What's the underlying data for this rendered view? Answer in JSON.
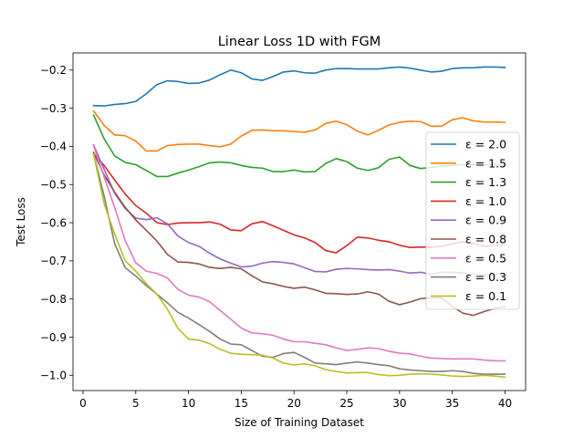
{
  "chart_data": {
    "type": "line",
    "title": "Linear Loss 1D with FGM",
    "xlabel": "Size of Training Dataset",
    "ylabel": "Test Loss",
    "xlim": [
      -0.95,
      41.95
    ],
    "ylim": [
      -1.04,
      -0.155
    ],
    "xticks": [
      0,
      5,
      10,
      15,
      20,
      25,
      30,
      35,
      40
    ],
    "yticks": [
      -1.0,
      -0.9,
      -0.8,
      -0.7,
      -0.6,
      -0.5,
      -0.4,
      -0.3,
      -0.2
    ],
    "xtick_labels": [
      "0",
      "5",
      "10",
      "15",
      "20",
      "25",
      "30",
      "35",
      "40"
    ],
    "ytick_labels": [
      "−1.0",
      "−0.9",
      "−0.8",
      "−0.7",
      "−0.6",
      "−0.5",
      "−0.4",
      "−0.3",
      "−0.2"
    ],
    "grid": false,
    "legend_position": "center-right",
    "x": [
      1,
      2,
      3,
      4,
      5,
      6,
      7,
      8,
      9,
      10,
      11,
      12,
      13,
      14,
      15,
      16,
      17,
      18,
      19,
      20,
      21,
      22,
      23,
      24,
      25,
      26,
      27,
      28,
      29,
      30,
      31,
      32,
      33,
      34,
      35,
      36,
      37,
      38,
      39,
      40
    ],
    "series": [
      {
        "name": "ε = 2.0",
        "color": "#1f77b4",
        "values": [
          -0.293,
          -0.294,
          -0.29,
          -0.288,
          -0.282,
          -0.262,
          -0.238,
          -0.228,
          -0.23,
          -0.235,
          -0.234,
          -0.226,
          -0.212,
          -0.2,
          -0.207,
          -0.223,
          -0.227,
          -0.217,
          -0.205,
          -0.202,
          -0.207,
          -0.208,
          -0.2,
          -0.196,
          -0.196,
          -0.197,
          -0.197,
          -0.197,
          -0.194,
          -0.192,
          -0.195,
          -0.2,
          -0.205,
          -0.203,
          -0.196,
          -0.194,
          -0.194,
          -0.192,
          -0.192,
          -0.193
        ]
      },
      {
        "name": "ε = 1.5",
        "color": "#ff7f0e",
        "values": [
          -0.307,
          -0.345,
          -0.37,
          -0.372,
          -0.386,
          -0.412,
          -0.412,
          -0.398,
          -0.395,
          -0.394,
          -0.394,
          -0.398,
          -0.401,
          -0.394,
          -0.373,
          -0.358,
          -0.357,
          -0.359,
          -0.359,
          -0.361,
          -0.363,
          -0.357,
          -0.34,
          -0.334,
          -0.343,
          -0.36,
          -0.37,
          -0.358,
          -0.344,
          -0.337,
          -0.334,
          -0.335,
          -0.347,
          -0.347,
          -0.33,
          -0.325,
          -0.333,
          -0.336,
          -0.336,
          -0.337
        ]
      },
      {
        "name": "ε = 1.3",
        "color": "#2ca02c",
        "values": [
          -0.318,
          -0.38,
          -0.425,
          -0.442,
          -0.448,
          -0.463,
          -0.479,
          -0.479,
          -0.47,
          -0.462,
          -0.453,
          -0.443,
          -0.441,
          -0.443,
          -0.45,
          -0.455,
          -0.457,
          -0.466,
          -0.466,
          -0.462,
          -0.467,
          -0.466,
          -0.445,
          -0.432,
          -0.44,
          -0.457,
          -0.463,
          -0.456,
          -0.434,
          -0.428,
          -0.45,
          -0.458,
          -0.455,
          -0.452,
          -0.45,
          -0.448,
          -0.447,
          -0.448,
          -0.448,
          -0.449
        ]
      },
      {
        "name": "ε = 1.0",
        "color": "#d62728",
        "values": [
          -0.42,
          -0.45,
          -0.488,
          -0.525,
          -0.555,
          -0.575,
          -0.6,
          -0.605,
          -0.601,
          -0.6,
          -0.6,
          -0.598,
          -0.604,
          -0.619,
          -0.621,
          -0.603,
          -0.597,
          -0.608,
          -0.62,
          -0.632,
          -0.64,
          -0.652,
          -0.673,
          -0.679,
          -0.66,
          -0.638,
          -0.64,
          -0.646,
          -0.65,
          -0.659,
          -0.665,
          -0.664,
          -0.664,
          -0.662,
          -0.655,
          -0.65,
          -0.655,
          -0.662,
          -0.66,
          -0.658
        ]
      },
      {
        "name": "ε = 0.9",
        "color": "#9467bd",
        "values": [
          -0.396,
          -0.46,
          -0.523,
          -0.563,
          -0.588,
          -0.592,
          -0.587,
          -0.603,
          -0.635,
          -0.652,
          -0.662,
          -0.68,
          -0.695,
          -0.706,
          -0.716,
          -0.714,
          -0.706,
          -0.702,
          -0.704,
          -0.708,
          -0.718,
          -0.728,
          -0.729,
          -0.722,
          -0.72,
          -0.721,
          -0.723,
          -0.724,
          -0.723,
          -0.727,
          -0.732,
          -0.73,
          -0.735,
          -0.73,
          -0.73,
          -0.732,
          -0.735,
          -0.737,
          -0.735,
          -0.735
        ]
      },
      {
        "name": "ε = 0.8",
        "color": "#8c564b",
        "values": [
          -0.416,
          -0.475,
          -0.52,
          -0.56,
          -0.593,
          -0.62,
          -0.648,
          -0.683,
          -0.703,
          -0.704,
          -0.708,
          -0.717,
          -0.72,
          -0.717,
          -0.721,
          -0.739,
          -0.755,
          -0.76,
          -0.767,
          -0.772,
          -0.769,
          -0.776,
          -0.785,
          -0.786,
          -0.788,
          -0.787,
          -0.781,
          -0.787,
          -0.806,
          -0.815,
          -0.808,
          -0.799,
          -0.797,
          -0.797,
          -0.82,
          -0.837,
          -0.843,
          -0.833,
          -0.825,
          -0.82
        ]
      },
      {
        "name": "ε = 0.5",
        "color": "#e377c2",
        "values": [
          -0.398,
          -0.48,
          -0.56,
          -0.647,
          -0.705,
          -0.727,
          -0.733,
          -0.745,
          -0.775,
          -0.79,
          -0.795,
          -0.807,
          -0.83,
          -0.853,
          -0.876,
          -0.889,
          -0.891,
          -0.895,
          -0.905,
          -0.912,
          -0.912,
          -0.916,
          -0.92,
          -0.928,
          -0.935,
          -0.932,
          -0.928,
          -0.93,
          -0.937,
          -0.942,
          -0.944,
          -0.95,
          -0.955,
          -0.956,
          -0.957,
          -0.957,
          -0.957,
          -0.96,
          -0.962,
          -0.962
        ]
      },
      {
        "name": "ε = 0.3",
        "color": "#7f7f7f",
        "values": [
          -0.419,
          -0.53,
          -0.655,
          -0.718,
          -0.74,
          -0.765,
          -0.787,
          -0.81,
          -0.835,
          -0.85,
          -0.867,
          -0.885,
          -0.905,
          -0.918,
          -0.92,
          -0.935,
          -0.95,
          -0.953,
          -0.943,
          -0.94,
          -0.953,
          -0.968,
          -0.97,
          -0.972,
          -0.968,
          -0.965,
          -0.968,
          -0.972,
          -0.975,
          -0.983,
          -0.986,
          -0.988,
          -0.99,
          -0.99,
          -0.988,
          -0.99,
          -0.995,
          -0.997,
          -0.997,
          -0.997
        ]
      },
      {
        "name": "ε = 0.1",
        "color": "#bcbd22",
        "values": [
          -0.42,
          -0.55,
          -0.63,
          -0.7,
          -0.727,
          -0.76,
          -0.787,
          -0.827,
          -0.877,
          -0.905,
          -0.908,
          -0.917,
          -0.932,
          -0.942,
          -0.945,
          -0.946,
          -0.947,
          -0.955,
          -0.968,
          -0.973,
          -0.97,
          -0.975,
          -0.985,
          -0.99,
          -0.994,
          -0.993,
          -0.993,
          -0.998,
          -1.001,
          -1.0,
          -0.997,
          -0.996,
          -0.997,
          -0.999,
          -1.002,
          -1.003,
          -1.002,
          -1.0,
          -1.002,
          -1.005
        ]
      }
    ]
  }
}
